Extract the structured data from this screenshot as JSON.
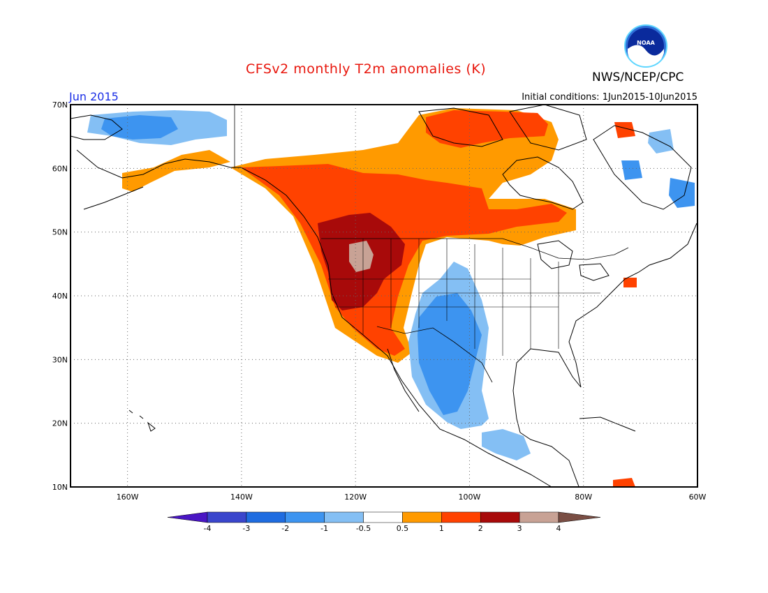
{
  "header": {
    "title": "CFSv2 monthly T2m anomalies (K)",
    "agency": "NWS/NCEP/CPC",
    "logo_text": "NOAA",
    "month": "Jun 2015",
    "initial_conditions": "Initial conditions: 1Jun2015-10Jun2015"
  },
  "map": {
    "lon_range": [
      -170,
      -60
    ],
    "lat_range": [
      10,
      70
    ],
    "lat_labels": [
      "70N",
      "60N",
      "50N",
      "40N",
      "30N",
      "20N",
      "10N"
    ],
    "lon_labels": [
      "160W",
      "140W",
      "120W",
      "100W",
      "80W",
      "60W"
    ],
    "grid": "dotted"
  },
  "legend": {
    "tick_labels": [
      "-4",
      "-3",
      "-2",
      "-1",
      "-0.5",
      "0.5",
      "1",
      "2",
      "3",
      "4"
    ],
    "colors": [
      "#4a16c4",
      "#3a46cc",
      "#1f6ce0",
      "#3d94f0",
      "#84bff4",
      "#ffffff",
      "#ff9a00",
      "#ff4200",
      "#a80a0a",
      "#c8a295",
      "#7a4e44"
    ]
  }
}
